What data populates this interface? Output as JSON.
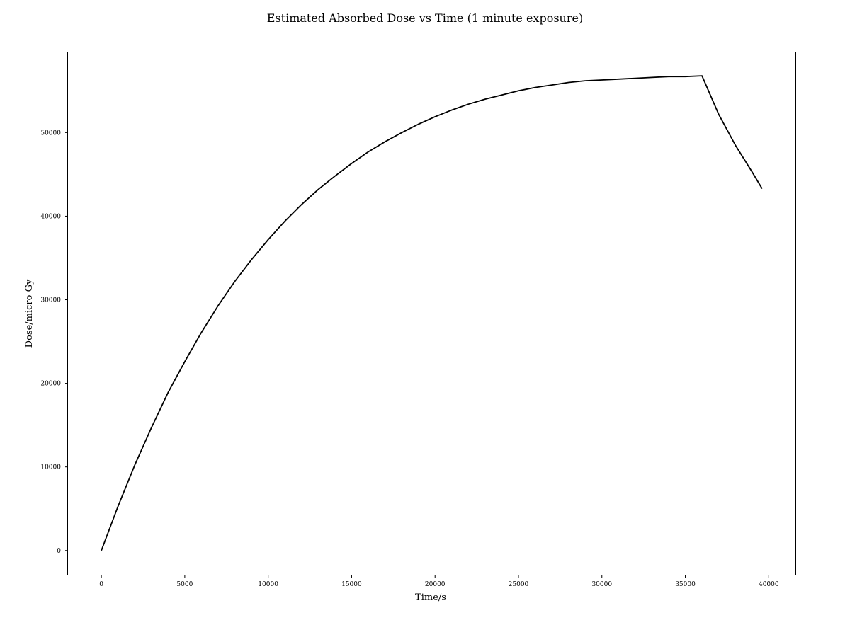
{
  "chart_data": {
    "type": "line",
    "title": "Estimated Absorbed Dose vs Time (1 minute exposure)",
    "xlabel": "Time/s",
    "ylabel": "Dose/micro Gy",
    "xlim": [
      -2000,
      41600
    ],
    "ylim": [
      -2900,
      59600
    ],
    "xticks": [
      0,
      5000,
      10000,
      15000,
      20000,
      25000,
      30000,
      35000,
      40000
    ],
    "yticks": [
      0,
      10000,
      20000,
      30000,
      40000,
      50000
    ],
    "grid": false,
    "legend": "none",
    "series": [
      {
        "color": "#000000",
        "x": [
          0,
          1000,
          2000,
          3000,
          4000,
          5000,
          6000,
          7000,
          8000,
          9000,
          10000,
          11000,
          12000,
          13000,
          14000,
          15000,
          16000,
          17000,
          18000,
          19000,
          20000,
          21000,
          22000,
          23000,
          24000,
          25000,
          26000,
          27000,
          28000,
          29000,
          30000,
          31000,
          32000,
          33000,
          34000,
          35000,
          36000,
          37000,
          38000,
          39000,
          39600
        ],
        "y": [
          0,
          5300,
          10200,
          14700,
          18900,
          22600,
          26100,
          29300,
          32200,
          34800,
          37200,
          39400,
          41400,
          43200,
          44800,
          46300,
          47700,
          48900,
          50000,
          51000,
          51900,
          52700,
          53400,
          54000,
          54500,
          55000,
          55400,
          55700,
          56000,
          56200,
          56300,
          56400,
          56500,
          56600,
          56700,
          56700,
          56800,
          52200,
          48500,
          45300,
          43300
        ]
      }
    ]
  }
}
